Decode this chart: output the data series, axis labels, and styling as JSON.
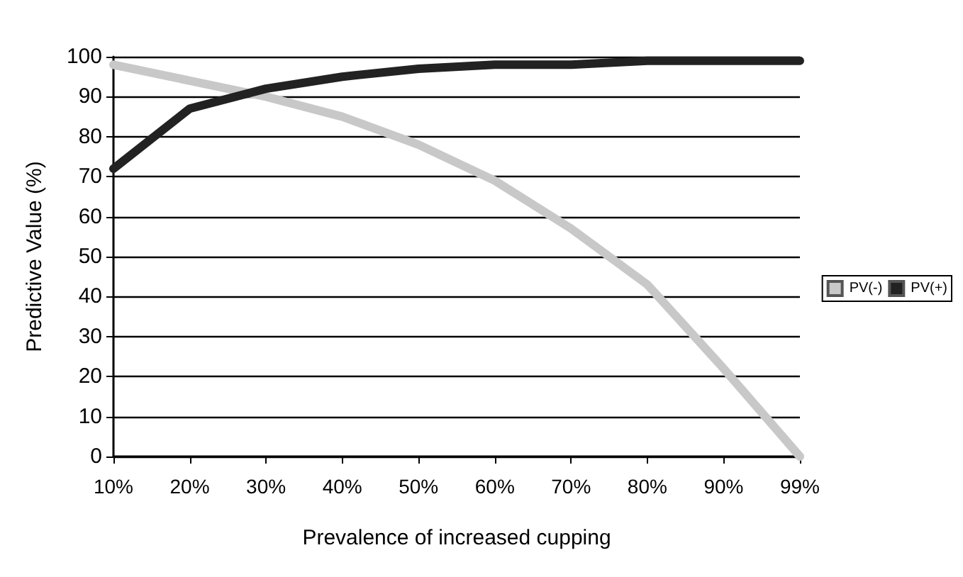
{
  "chart_data": {
    "type": "line",
    "xlabel": "Prevalence of increased cupping",
    "ylabel": "Predictive Value (%)",
    "categories": [
      "10%",
      "20%",
      "30%",
      "40%",
      "50%",
      "60%",
      "70%",
      "80%",
      "90%",
      "99%"
    ],
    "series": [
      {
        "name": "PV(-)",
        "color": "#c8c8c8",
        "values": [
          98,
          94,
          90,
          85,
          78,
          69,
          57,
          43,
          22,
          0
        ]
      },
      {
        "name": "PV(+)",
        "color": "#222222",
        "values": [
          72,
          87,
          92,
          95,
          97,
          98,
          98,
          99,
          99,
          99
        ]
      }
    ],
    "ylim": [
      0,
      100
    ],
    "yticks": [
      0,
      10,
      20,
      30,
      40,
      50,
      60,
      70,
      80,
      90,
      100
    ],
    "grid": "y",
    "legend": "right",
    "marker": "none"
  }
}
